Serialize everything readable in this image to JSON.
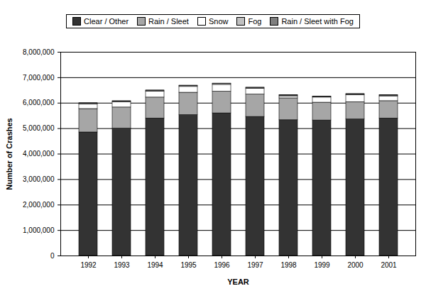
{
  "chart_data": {
    "type": "bar",
    "stacked": true,
    "legend": "top",
    "grid": true,
    "x_label": "YEAR",
    "y_label": "Number of Crashes",
    "categories": [
      "1992",
      "1993",
      "1994",
      "1995",
      "1996",
      "1997",
      "1998",
      "1999",
      "2000",
      "2001"
    ],
    "series": [
      {
        "name": "Clear / Other",
        "color": "#333333",
        "values": [
          4850000,
          5000000,
          5400000,
          5530000,
          5600000,
          5460000,
          5330000,
          5320000,
          5360000,
          5400000
        ]
      },
      {
        "name": "Rain / Sleet",
        "color": "#a6a6a6",
        "values": [
          920000,
          830000,
          820000,
          880000,
          850000,
          880000,
          860000,
          700000,
          680000,
          680000
        ]
      },
      {
        "name": "Snow",
        "color": "#ffffff",
        "values": [
          180000,
          200000,
          230000,
          230000,
          270000,
          220000,
          80000,
          200000,
          280000,
          190000
        ]
      },
      {
        "name": "Fog",
        "color": "#c0c0c0",
        "values": [
          40000,
          40000,
          40000,
          40000,
          40000,
          40000,
          30000,
          30000,
          30000,
          30000
        ]
      },
      {
        "name": "Rain / Sleet with Fog",
        "color": "#7f7f7f",
        "values": [
          10000,
          10000,
          10000,
          10000,
          10000,
          10000,
          10000,
          10000,
          10000,
          10000
        ]
      }
    ],
    "ylim": [
      0,
      8000000
    ],
    "yticks": [
      0,
      {
        "value": 1000000,
        "label": "1,000,000"
      },
      {
        "value": 2000000,
        "label": "2,000,000"
      },
      {
        "value": 3000000,
        "label": "3,000,000"
      },
      {
        "value": 4000000,
        "label": "4,000,000"
      },
      {
        "value": 5000000,
        "label": "5,000,000"
      },
      {
        "value": 6000000,
        "label": "6,000,000"
      },
      {
        "value": 7000000,
        "label": "7,000,000"
      },
      {
        "value": 8000000,
        "label": "8,000,000"
      }
    ]
  }
}
